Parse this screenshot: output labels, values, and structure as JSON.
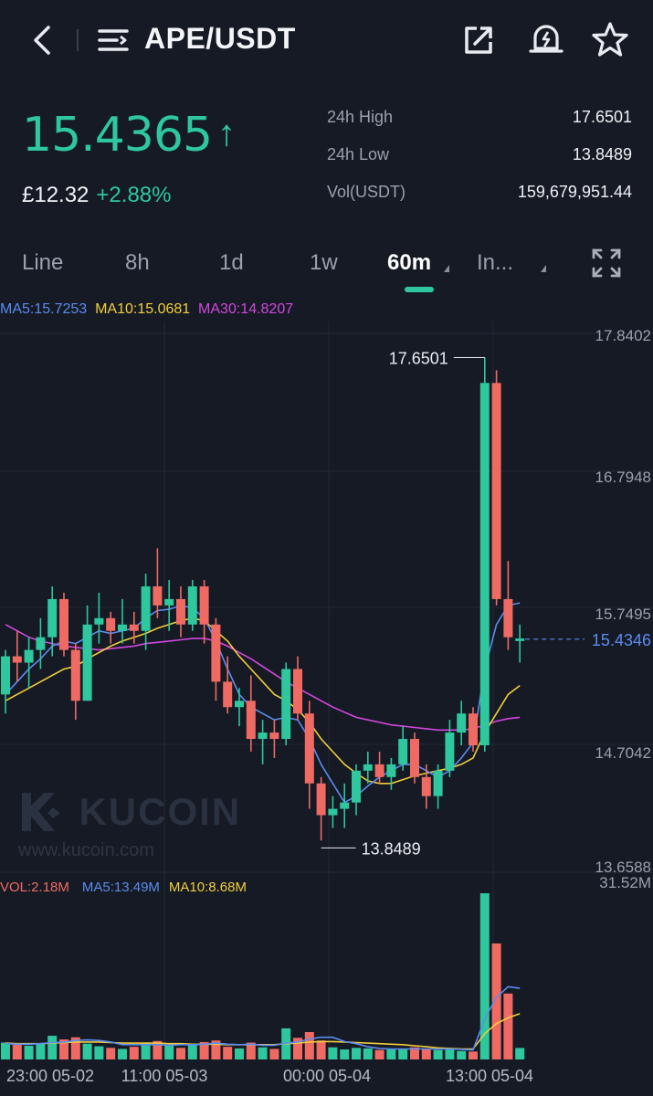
{
  "header": {
    "pair": "APE/USDT",
    "back_icon": "chevron-left-icon",
    "menu_icon": "menu-icon",
    "share_icon": "share-icon",
    "alert_icon": "bell-alert-icon",
    "favorite_icon": "star-icon"
  },
  "ticker": {
    "last_price": "15.4365",
    "arrow": "↑",
    "fiat_price": "£12.32",
    "change": "+2.88%",
    "high_label": "24h High",
    "high_value": "17.6501",
    "low_label": "24h Low",
    "low_value": "13.8489",
    "vol_label": "Vol(USDT)",
    "vol_value": "159,679,951.44"
  },
  "tabs": [
    {
      "label": "Line"
    },
    {
      "label": "8h"
    },
    {
      "label": "1d"
    },
    {
      "label": "1w"
    },
    {
      "label": "60m"
    },
    {
      "label": "In..."
    }
  ],
  "active_tab": "60m",
  "fullscreen_icon": "fullscreen-icon",
  "ma_legend": {
    "ma5": "MA5:15.7253",
    "ma10": "MA10:15.0681",
    "ma30": "MA30:14.8207"
  },
  "vol_legend": {
    "vol": "VOL:2.18M",
    "ma5": "MA5:13.49M",
    "ma10": "MA10:8.68M"
  },
  "watermark": {
    "brand": "KUCOIN",
    "url": "www.kucoin.com"
  },
  "colors": {
    "up": "#2ec79e",
    "down": "#ef6a63",
    "ma5": "#5b8cf0",
    "ma10": "#f2cd3c",
    "ma30": "#d347e0",
    "background": "#151a24"
  },
  "chart_data": {
    "type": "candlestick",
    "price_axis": [
      "17.8402",
      "16.7948",
      "15.7495",
      "14.7042",
      "13.6588"
    ],
    "ylim": [
      13.6588,
      17.8402
    ],
    "current_price_label": "15.4346",
    "high_marker": "17.6501",
    "low_marker": "13.8489",
    "volume_axis_max": "31.52M",
    "x_labels": [
      "23:00 05-02",
      "11:00 05-03",
      "00:00 05-04",
      "13:00 05-04"
    ],
    "candles": [
      [
        15.0,
        15.35,
        14.85,
        15.3
      ],
      [
        15.3,
        15.5,
        15.1,
        15.25
      ],
      [
        15.25,
        15.45,
        15.05,
        15.35
      ],
      [
        15.35,
        15.6,
        15.2,
        15.45
      ],
      [
        15.45,
        15.85,
        15.3,
        15.75
      ],
      [
        15.75,
        15.8,
        15.3,
        15.35
      ],
      [
        15.35,
        15.4,
        14.8,
        14.95
      ],
      [
        14.95,
        15.7,
        14.95,
        15.55
      ],
      [
        15.55,
        15.8,
        15.4,
        15.6
      ],
      [
        15.6,
        15.65,
        15.4,
        15.5
      ],
      [
        15.5,
        15.75,
        15.4,
        15.55
      ],
      [
        15.55,
        15.65,
        15.4,
        15.5
      ],
      [
        15.5,
        15.95,
        15.35,
        15.85
      ],
      [
        15.85,
        16.15,
        15.6,
        15.7
      ],
      [
        15.7,
        15.9,
        15.5,
        15.75
      ],
      [
        15.75,
        15.85,
        15.45,
        15.55
      ],
      [
        15.55,
        15.9,
        15.5,
        15.85
      ],
      [
        15.85,
        15.9,
        15.4,
        15.55
      ],
      [
        15.55,
        15.6,
        14.95,
        15.1
      ],
      [
        15.1,
        15.3,
        14.85,
        14.9
      ],
      [
        14.9,
        15.05,
        14.75,
        14.95
      ],
      [
        14.95,
        15.15,
        14.55,
        14.65
      ],
      [
        14.65,
        14.8,
        14.45,
        14.7
      ],
      [
        14.7,
        14.8,
        14.5,
        14.65
      ],
      [
        14.65,
        15.25,
        14.6,
        15.2
      ],
      [
        15.2,
        15.3,
        14.8,
        14.85
      ],
      [
        14.85,
        14.95,
        14.1,
        14.3
      ],
      [
        14.3,
        14.35,
        13.85,
        14.05
      ],
      [
        14.05,
        14.2,
        13.95,
        14.1
      ],
      [
        14.1,
        14.3,
        13.95,
        14.15
      ],
      [
        14.15,
        14.45,
        14.05,
        14.4
      ],
      [
        14.4,
        14.55,
        14.3,
        14.45
      ],
      [
        14.45,
        14.55,
        14.3,
        14.35
      ],
      [
        14.35,
        14.5,
        14.25,
        14.45
      ],
      [
        14.45,
        14.75,
        14.4,
        14.65
      ],
      [
        14.65,
        14.7,
        14.3,
        14.35
      ],
      [
        14.35,
        14.45,
        14.1,
        14.2
      ],
      [
        14.2,
        14.45,
        14.1,
        14.4
      ],
      [
        14.4,
        14.8,
        14.35,
        14.7
      ],
      [
        14.7,
        14.95,
        14.6,
        14.85
      ],
      [
        14.85,
        14.9,
        14.55,
        14.6
      ],
      [
        14.6,
        17.65,
        14.55,
        17.45
      ],
      [
        17.45,
        17.55,
        15.7,
        15.75
      ],
      [
        15.75,
        16.05,
        15.35,
        15.45
      ],
      [
        15.42,
        15.55,
        15.25,
        15.44
      ]
    ],
    "ma5": [
      15.0,
      15.1,
      15.2,
      15.28,
      15.38,
      15.42,
      15.4,
      15.45,
      15.5,
      15.48,
      15.5,
      15.52,
      15.6,
      15.66,
      15.67,
      15.7,
      15.68,
      15.6,
      15.42,
      15.2,
      15.0,
      14.9,
      14.85,
      14.8,
      14.82,
      14.8,
      14.65,
      14.45,
      14.3,
      14.15,
      14.2,
      14.28,
      14.35,
      14.4,
      14.45,
      14.45,
      14.4,
      14.35,
      14.4,
      14.5,
      14.62,
      15.2,
      15.55,
      15.7,
      15.72
    ],
    "ma10": [
      14.95,
      15.0,
      15.05,
      15.1,
      15.15,
      15.2,
      15.22,
      15.28,
      15.33,
      15.38,
      15.42,
      15.45,
      15.48,
      15.52,
      15.55,
      15.58,
      15.6,
      15.58,
      15.5,
      15.42,
      15.3,
      15.2,
      15.1,
      15.0,
      14.95,
      14.88,
      14.78,
      14.65,
      14.55,
      14.45,
      14.38,
      14.32,
      14.3,
      14.3,
      14.33,
      14.36,
      14.38,
      14.4,
      14.42,
      14.45,
      14.5,
      14.7,
      14.85,
      15.0,
      15.07
    ],
    "ma30": [
      15.55,
      15.5,
      15.45,
      15.42,
      15.4,
      15.38,
      15.37,
      15.36,
      15.35,
      15.36,
      15.37,
      15.38,
      15.4,
      15.41,
      15.42,
      15.43,
      15.44,
      15.44,
      15.42,
      15.38,
      15.33,
      15.28,
      15.22,
      15.16,
      15.1,
      15.05,
      15.0,
      14.95,
      14.9,
      14.86,
      14.82,
      14.8,
      14.78,
      14.76,
      14.75,
      14.74,
      14.73,
      14.72,
      14.72,
      14.72,
      14.73,
      14.76,
      14.79,
      14.81,
      14.82
    ],
    "volume": [
      3.2,
      2.8,
      2.6,
      3.0,
      4.5,
      3.8,
      4.2,
      3.0,
      2.5,
      2.2,
      2.0,
      2.4,
      3.1,
      3.5,
      2.6,
      2.2,
      2.8,
      3.3,
      3.6,
      2.4,
      2.1,
      3.2,
      2.3,
      2.0,
      5.9,
      4.1,
      5.2,
      3.6,
      2.3,
      1.9,
      2.2,
      2.1,
      1.8,
      2.0,
      1.9,
      2.3,
      2.0,
      1.8,
      1.9,
      1.6,
      1.5,
      31.52,
      22.0,
      12.5,
      2.18
    ],
    "vol_ma5": [
      3.0,
      2.9,
      2.9,
      3.0,
      3.2,
      3.3,
      3.6,
      3.7,
      3.6,
      3.3,
      2.8,
      2.8,
      2.8,
      2.8,
      2.7,
      2.8,
      2.8,
      2.9,
      3.1,
      2.9,
      2.8,
      2.9,
      2.7,
      2.7,
      3.1,
      3.3,
      3.9,
      4.2,
      4.2,
      3.4,
      3.0,
      2.4,
      2.1,
      2.0,
      2.0,
      2.0,
      2.0,
      2.0,
      2.0,
      1.9,
      1.8,
      7.7,
      11.8,
      13.8,
      13.49
    ],
    "vol_ma10": [
      3.1,
      3.0,
      3.0,
      3.0,
      3.1,
      3.2,
      3.3,
      3.3,
      3.3,
      3.2,
      3.1,
      3.1,
      3.1,
      3.1,
      3.0,
      3.0,
      2.9,
      2.9,
      2.9,
      2.8,
      2.8,
      2.8,
      2.8,
      2.8,
      3.0,
      3.1,
      3.3,
      3.4,
      3.4,
      3.3,
      3.2,
      3.1,
      3.0,
      2.9,
      2.8,
      2.6,
      2.4,
      2.2,
      2.1,
      2.0,
      2.0,
      4.9,
      6.8,
      7.9,
      8.68
    ],
    "legend": [
      "MA5",
      "MA10",
      "MA30"
    ]
  }
}
